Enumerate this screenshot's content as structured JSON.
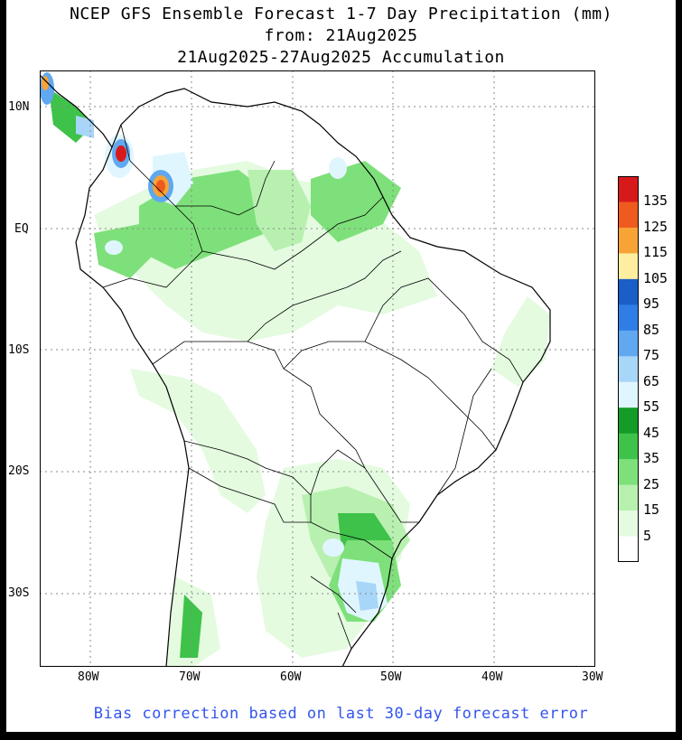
{
  "title": {
    "line1": "NCEP GFS Ensemble Forecast 1-7 Day Precipitation (mm)",
    "line2": "from: 21Aug2025",
    "line3": "21Aug2025-27Aug2025 Accumulation"
  },
  "axes": {
    "lat_labels": [
      "10N",
      "EQ",
      "10S",
      "20S",
      "30S"
    ],
    "lat_values": [
      10,
      0,
      -10,
      -20,
      -30
    ],
    "lon_labels": [
      "80W",
      "70W",
      "60W",
      "50W",
      "40W",
      "30W"
    ],
    "lon_values": [
      -80,
      -70,
      -60,
      -50,
      -40,
      -30
    ],
    "lon_range": [
      -85,
      -30
    ],
    "lat_range": [
      -36,
      13
    ]
  },
  "legend": {
    "labels": [
      "135",
      "125",
      "115",
      "105",
      "95",
      "85",
      "75",
      "65",
      "55",
      "45",
      "35",
      "25",
      "15",
      "5"
    ],
    "colors": [
      "#d7191c",
      "#ef5a1e",
      "#f7a336",
      "#fdeea0",
      "#1a5ec8",
      "#2f7ee8",
      "#60a8f0",
      "#a8d6f8",
      "#e0f6ff",
      "#139c28",
      "#3ec24a",
      "#7ee07a",
      "#b8f0b0",
      "#e4fbe0",
      "#ffffff"
    ]
  },
  "footer": "Bias correction based on last 30-day forecast error"
}
